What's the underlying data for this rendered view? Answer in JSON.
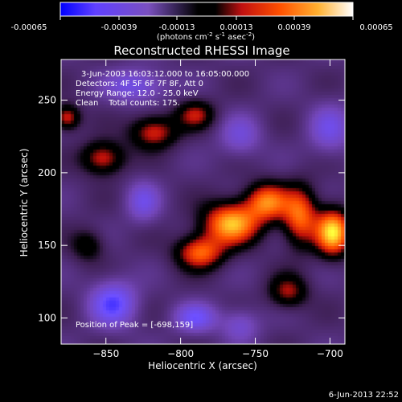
{
  "colorbar": {
    "ticks": [
      "-0.00065",
      "-0.00039",
      "-0.00013",
      "0.00013",
      "0.00039",
      "0.00065"
    ],
    "unit_label": "(photons cm",
    "unit_sup1": "-2",
    "unit_mid": " s",
    "unit_sup2": "-1",
    "unit_end": " asec",
    "unit_sup3": "-2",
    "unit_close": ")"
  },
  "chart_data": {
    "type": "heatmap",
    "title": "Reconstructed RHESSI Image",
    "xlabel": "Heliocentric X (arcsec)",
    "ylabel": "Heliocentric Y (arcsec)",
    "xlim": [
      -880,
      -690
    ],
    "ylim": [
      82,
      278
    ],
    "xticks": [
      -850,
      -800,
      -750,
      -700
    ],
    "xtick_labels": [
      "−850",
      "−800",
      "−750",
      "−700"
    ],
    "yticks": [
      100,
      150,
      200,
      250
    ],
    "ytick_labels": [
      "100",
      "150",
      "200",
      "250"
    ],
    "value_range": [
      -0.00065,
      0.00065
    ],
    "colormap": [
      "#0000ff",
      "#8060ff",
      "#6a3fa0",
      "#000000",
      "#c01010",
      "#ff5000",
      "#ff9a20",
      "#ffff40",
      "#ffffff"
    ],
    "sources": [
      {
        "x": -698,
        "y": 159,
        "sx": 8,
        "sy": 11,
        "amp": 1.0
      },
      {
        "x": -766,
        "y": 165,
        "sx": 13,
        "sy": 10,
        "amp": 0.92
      },
      {
        "x": -742,
        "y": 180,
        "sx": 10,
        "sy": 9,
        "amp": 0.75
      },
      {
        "x": -787,
        "y": 145,
        "sx": 11,
        "sy": 8,
        "amp": 0.7
      },
      {
        "x": -720,
        "y": 170,
        "sx": 8,
        "sy": 14,
        "amp": 0.7
      },
      {
        "x": -728,
        "y": 118,
        "sx": 9,
        "sy": 8,
        "amp": 0.45
      },
      {
        "x": -852,
        "y": 210,
        "sx": 10,
        "sy": 8,
        "amp": 0.55
      },
      {
        "x": -818,
        "y": 228,
        "sx": 11,
        "sy": 8,
        "amp": 0.55
      },
      {
        "x": -790,
        "y": 240,
        "sx": 9,
        "sy": 7,
        "amp": 0.45
      },
      {
        "x": -876,
        "y": 238,
        "sx": 6,
        "sy": 6,
        "amp": 0.55
      },
      {
        "x": -862,
        "y": 150,
        "sx": 8,
        "sy": 8,
        "amp": 0.3
      },
      {
        "x": -825,
        "y": 180,
        "sx": 8,
        "sy": 10,
        "amp": -0.35
      },
      {
        "x": -845,
        "y": 110,
        "sx": 11,
        "sy": 11,
        "amp": -0.55
      },
      {
        "x": -790,
        "y": 100,
        "sx": 10,
        "sy": 7,
        "amp": -0.45
      },
      {
        "x": -760,
        "y": 225,
        "sx": 10,
        "sy": 10,
        "amp": -0.3
      },
      {
        "x": -700,
        "y": 230,
        "sx": 10,
        "sy": 12,
        "amp": -0.35
      },
      {
        "x": -830,
        "y": 260,
        "sx": 14,
        "sy": 8,
        "amp": -0.4
      },
      {
        "x": -760,
        "y": 95,
        "sx": 9,
        "sy": 8,
        "amp": -0.3
      }
    ],
    "peak": [
      -698,
      159
    ]
  },
  "info": {
    "time_range": "3-Jun-2003 16:03:12.000 to 16:05:00.000",
    "detectors": "Detectors: 4F 5F 6F 7F 8F, Att 0",
    "energy": "Energy Range: 12.0 - 25.0 keV",
    "clean_line": "Clean    Total counts: 175.",
    "peak_text": "Position of Peak = [-698,159]"
  },
  "footer": {
    "date": "6-Jun-2013 22:52"
  }
}
